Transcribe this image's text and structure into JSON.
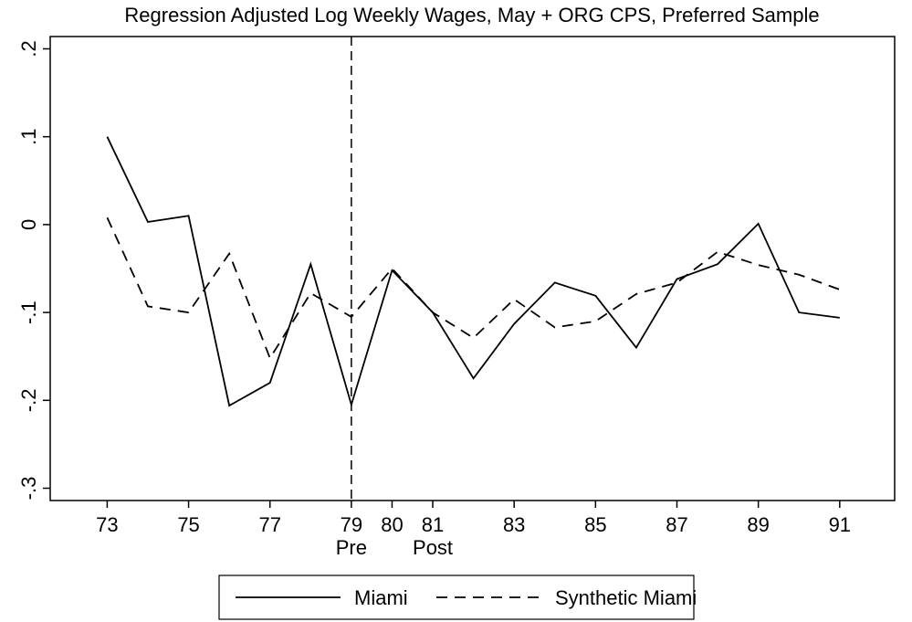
{
  "chart_data": {
    "type": "line",
    "title": "Regression Adjusted Log Weekly Wages, May + ORG CPS, Preferred Sample",
    "x": [
      73,
      74,
      75,
      76,
      77,
      78,
      79,
      80,
      81,
      82,
      83,
      84,
      85,
      86,
      87,
      88,
      89,
      90,
      91
    ],
    "series": [
      {
        "name": "Miami",
        "color": "#000000",
        "dash": "solid",
        "values": [
          0.1,
          0.003,
          0.01,
          -0.206,
          -0.18,
          -0.045,
          -0.205,
          -0.052,
          -0.1,
          -0.175,
          -0.113,
          -0.066,
          -0.081,
          -0.14,
          -0.062,
          -0.045,
          0.001,
          -0.1,
          -0.106
        ]
      },
      {
        "name": "Synthetic Miami",
        "color": "#000000",
        "dash": "dashed",
        "values": [
          0.008,
          -0.093,
          -0.1,
          -0.033,
          -0.152,
          -0.078,
          -0.105,
          -0.05,
          -0.1,
          -0.129,
          -0.085,
          -0.117,
          -0.11,
          -0.079,
          -0.066,
          -0.031,
          -0.046,
          -0.057,
          -0.074
        ]
      }
    ],
    "xlim": [
      71.6,
      92.35
    ],
    "xticks": [
      73,
      75,
      77,
      79,
      80,
      81,
      83,
      85,
      87,
      89,
      91
    ],
    "ylim": [
      -0.314,
      0.214
    ],
    "yticks": [
      {
        "value": 0.2,
        "label": ".2"
      },
      {
        "value": 0.1,
        "label": ".1"
      },
      0,
      {
        "value": -0.1,
        "label": "-.1"
      },
      {
        "value": -0.2,
        "label": "-.2"
      },
      {
        "value": -0.3,
        "label": "-.3"
      }
    ],
    "vline": 79,
    "annotations": [
      {
        "x": 79,
        "text": "Pre"
      },
      {
        "x": 81,
        "text": "Post"
      }
    ],
    "grid": false,
    "legend": "bottom"
  }
}
